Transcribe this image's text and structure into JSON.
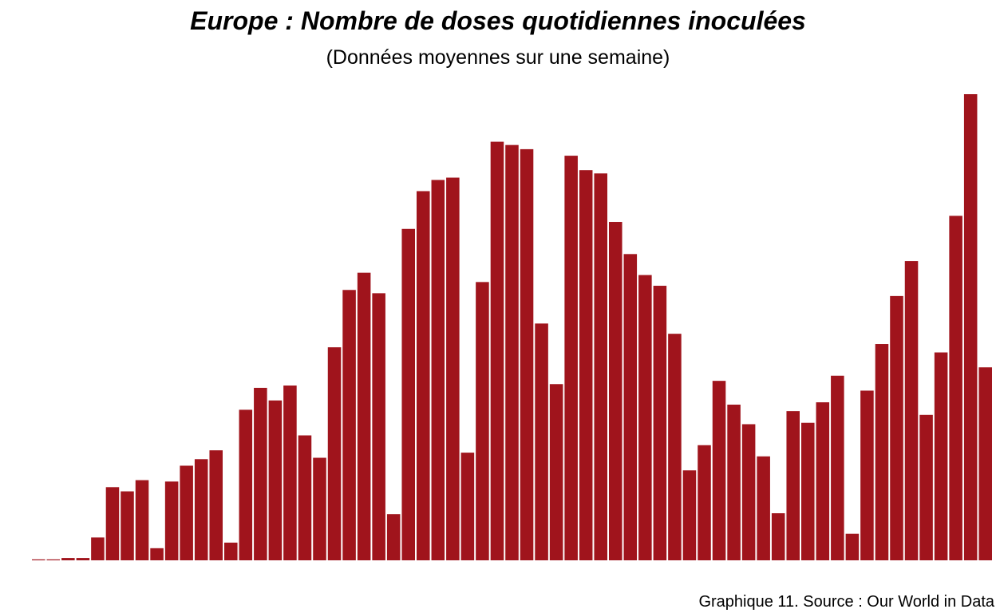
{
  "chart_data": {
    "type": "bar",
    "title": "Europe : Nombre de doses quotidiennes inoculées",
    "subtitle": "(Données moyennes sur une semaine)",
    "caption": "Graphique 11. Source : Our World in Data",
    "xlabel": "",
    "ylabel": "",
    "grid": false,
    "bar_color": "#A0141C",
    "ylim": [
      0,
      100
    ],
    "values": [
      0.2,
      0.2,
      0.5,
      0.5,
      4.9,
      15.7,
      14.8,
      17.2,
      2.6,
      16.9,
      20.3,
      21.7,
      23.6,
      3.8,
      32.3,
      37.0,
      34.3,
      37.5,
      26.8,
      22.0,
      45.7,
      58.0,
      61.7,
      57.3,
      9.9,
      71.1,
      79.2,
      81.6,
      82.1,
      23.1,
      59.7,
      89.8,
      89.1,
      88.2,
      50.8,
      37.8,
      86.8,
      83.7,
      83.0,
      72.6,
      65.7,
      61.2,
      58.9,
      48.6,
      19.3,
      24.7,
      38.5,
      33.4,
      29.2,
      22.3,
      10.1,
      32.0,
      29.5,
      33.9,
      39.6,
      5.7,
      36.4,
      46.4,
      56.7,
      64.2,
      31.2,
      44.6,
      73.9,
      100.0,
      41.4
    ]
  }
}
